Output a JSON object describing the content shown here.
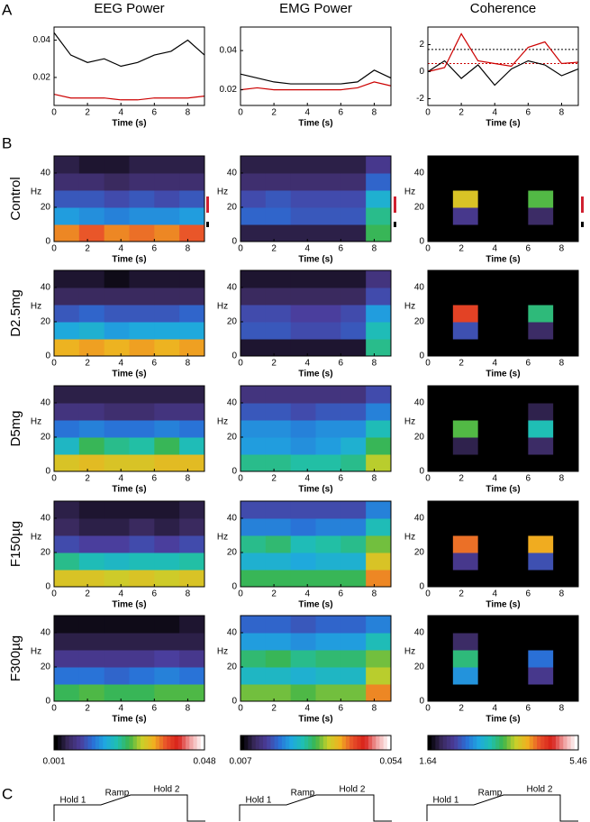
{
  "panel_labels": [
    "A",
    "B",
    "C"
  ],
  "colormap": [
    "#000000",
    "#3a2a5e",
    "#4b3c9a",
    "#2a6fd6",
    "#1fa7e0",
    "#1fc0b0",
    "#3cb54a",
    "#c8d02a",
    "#f0b020",
    "#e8502a",
    "#d8201a",
    "#f0a0a0",
    "#ffffff"
  ],
  "colorbars": [
    {
      "lim": [
        0.001,
        0.048
      ]
    },
    {
      "lim": [
        0.007,
        0.054
      ]
    },
    {
      "lim": [
        1.64,
        5.46
      ]
    }
  ],
  "protocol": {
    "labels": [
      "Hold 1",
      "Ramp",
      "Hold 2"
    ]
  },
  "chart_data": [
    {
      "type": "line",
      "title": "EEG Power",
      "xlabel": "Time (s)",
      "x": [
        0,
        1,
        2,
        3,
        4,
        5,
        6,
        7,
        8,
        9
      ],
      "xlim": [
        0,
        9
      ],
      "xticks": [
        0,
        2,
        4,
        6,
        8
      ],
      "ylim": [
        0.005,
        0.047
      ],
      "yticks": [
        0.02,
        0.04
      ],
      "series": [
        {
          "color": "#000000",
          "values": [
            0.044,
            0.032,
            0.028,
            0.03,
            0.026,
            0.028,
            0.032,
            0.034,
            0.04,
            0.032
          ]
        },
        {
          "color": "#cc0000",
          "values": [
            0.011,
            0.009,
            0.009,
            0.009,
            0.008,
            0.008,
            0.009,
            0.009,
            0.009,
            0.01
          ]
        }
      ]
    },
    {
      "type": "line",
      "title": "EMG Power",
      "xlabel": "Time (s)",
      "x": [
        0,
        1,
        2,
        3,
        4,
        5,
        6,
        7,
        8,
        9
      ],
      "xlim": [
        0,
        9
      ],
      "xticks": [
        0,
        2,
        4,
        6,
        8
      ],
      "ylim": [
        0.012,
        0.052
      ],
      "yticks": [
        0.02,
        0.04
      ],
      "series": [
        {
          "color": "#000000",
          "values": [
            0.028,
            0.026,
            0.024,
            0.023,
            0.023,
            0.023,
            0.023,
            0.024,
            0.03,
            0.026
          ]
        },
        {
          "color": "#cc0000",
          "values": [
            0.02,
            0.021,
            0.02,
            0.02,
            0.02,
            0.02,
            0.02,
            0.021,
            0.024,
            0.022
          ]
        }
      ]
    },
    {
      "type": "line",
      "title": "Coherence",
      "xlabel": "Time (s)",
      "x": [
        0,
        1,
        2,
        3,
        4,
        5,
        6,
        7,
        8,
        9
      ],
      "xlim": [
        0,
        9
      ],
      "xticks": [
        0,
        2,
        4,
        6,
        8
      ],
      "ylim": [
        -2.5,
        3.3
      ],
      "yticks": [
        -2,
        0,
        2
      ],
      "reference_lines": [
        {
          "value": 1.64,
          "color": "#000000"
        },
        {
          "value": 0.6,
          "color": "#cc0000"
        }
      ],
      "series": [
        {
          "color": "#000000",
          "values": [
            0,
            0.8,
            -0.5,
            0.5,
            -1,
            0.2,
            0.8,
            0.5,
            -0.3,
            0.2
          ]
        },
        {
          "color": "#cc0000",
          "values": [
            0,
            0.3,
            2.8,
            0.8,
            0.6,
            0.4,
            1.8,
            2.2,
            0.6,
            0.7
          ]
        }
      ]
    },
    {
      "type": "heatmap",
      "row_label": "Control",
      "ylabel": "Hz",
      "xlabel": "Time (s)",
      "xlim": [
        0,
        9
      ],
      "ylim": [
        0,
        50
      ],
      "xticks": [
        0,
        2,
        4,
        6,
        8
      ],
      "yticks": [
        0,
        20,
        40
      ],
      "z": [
        [
          0.034,
          0.036,
          0.034,
          0.035,
          0.034,
          0.036
        ],
        [
          0.016,
          0.015,
          0.014,
          0.015,
          0.015,
          0.016
        ],
        [
          0.011,
          0.011,
          0.01,
          0.011,
          0.01,
          0.011
        ],
        [
          0.006,
          0.006,
          0.005,
          0.006,
          0.006,
          0.006
        ],
        [
          0.004,
          0.003,
          0.003,
          0.004,
          0.004,
          0.004
        ]
      ]
    },
    {
      "type": "heatmap",
      "ylabel": "Hz",
      "xlabel": "Time (s)",
      "xlim": [
        0,
        9
      ],
      "ylim": [
        0,
        50
      ],
      "xticks": [
        0,
        2,
        4,
        6,
        8
      ],
      "yticks": [
        0,
        20,
        40
      ],
      "z": [
        [
          0.01,
          0.01,
          0.01,
          0.01,
          0.01,
          0.03
        ],
        [
          0.018,
          0.018,
          0.017,
          0.017,
          0.017,
          0.028
        ],
        [
          0.016,
          0.017,
          0.016,
          0.016,
          0.016,
          0.024
        ],
        [
          0.012,
          0.012,
          0.012,
          0.012,
          0.012,
          0.018
        ],
        [
          0.01,
          0.01,
          0.01,
          0.01,
          0.01,
          0.014
        ]
      ]
    },
    {
      "type": "heatmap",
      "ylabel": "Hz",
      "xlabel": "Time (s)",
      "xlim": [
        0,
        9
      ],
      "ylim": [
        0,
        50
      ],
      "xticks": [
        0,
        2,
        4,
        6,
        8
      ],
      "yticks": [
        0,
        20,
        40
      ],
      "z": [
        [
          1.64,
          1.64,
          1.64,
          1.64,
          1.64,
          1.64
        ],
        [
          1.64,
          2.2,
          1.64,
          1.64,
          2.0,
          1.64
        ],
        [
          1.64,
          4.0,
          1.64,
          1.64,
          3.6,
          1.64
        ],
        [
          1.64,
          1.64,
          1.64,
          1.64,
          1.64,
          1.64
        ],
        [
          1.64,
          1.64,
          1.64,
          1.64,
          1.64,
          1.64
        ]
      ]
    },
    {
      "type": "heatmap",
      "row_label": "D2.5mg",
      "ylabel": "Hz",
      "xlabel": "Time (s)",
      "xlim": [
        0,
        9
      ],
      "ylim": [
        0,
        50
      ],
      "xticks": [
        0,
        2,
        4,
        6,
        8
      ],
      "yticks": [
        0,
        20,
        40
      ],
      "z": [
        [
          0.032,
          0.033,
          0.032,
          0.033,
          0.032,
          0.033
        ],
        [
          0.017,
          0.018,
          0.016,
          0.017,
          0.017,
          0.017
        ],
        [
          0.011,
          0.012,
          0.011,
          0.011,
          0.011,
          0.012
        ],
        [
          0.005,
          0.005,
          0.005,
          0.005,
          0.005,
          0.005
        ],
        [
          0.003,
          0.003,
          0.002,
          0.003,
          0.003,
          0.003
        ]
      ]
    },
    {
      "type": "heatmap",
      "ylabel": "Hz",
      "xlabel": "Time (s)",
      "xlim": [
        0,
        9
      ],
      "ylim": [
        0,
        50
      ],
      "xticks": [
        0,
        2,
        4,
        6,
        8
      ],
      "yticks": [
        0,
        20,
        40
      ],
      "z": [
        [
          0.009,
          0.009,
          0.009,
          0.009,
          0.009,
          0.028
        ],
        [
          0.017,
          0.017,
          0.016,
          0.016,
          0.017,
          0.026
        ],
        [
          0.016,
          0.016,
          0.015,
          0.015,
          0.016,
          0.022
        ],
        [
          0.011,
          0.011,
          0.011,
          0.011,
          0.011,
          0.016
        ],
        [
          0.009,
          0.009,
          0.009,
          0.009,
          0.009,
          0.013
        ]
      ]
    },
    {
      "type": "heatmap",
      "ylabel": "Hz",
      "xlabel": "Time (s)",
      "xlim": [
        0,
        9
      ],
      "ylim": [
        0,
        50
      ],
      "xticks": [
        0,
        2,
        4,
        6,
        8
      ],
      "yticks": [
        0,
        20,
        40
      ],
      "z": [
        [
          1.64,
          1.64,
          1.64,
          1.64,
          1.64,
          1.64
        ],
        [
          1.64,
          2.4,
          1.64,
          1.64,
          2.0,
          1.64
        ],
        [
          1.64,
          4.6,
          1.64,
          1.64,
          3.4,
          1.64
        ],
        [
          1.64,
          1.64,
          1.64,
          1.64,
          1.64,
          1.64
        ],
        [
          1.64,
          1.64,
          1.64,
          1.64,
          1.64,
          1.64
        ]
      ]
    },
    {
      "type": "heatmap",
      "row_label": "D5mg",
      "ylabel": "Hz",
      "xlabel": "Time (s)",
      "xlim": [
        0,
        9
      ],
      "ylim": [
        0,
        50
      ],
      "xticks": [
        0,
        2,
        4,
        6,
        8
      ],
      "yticks": [
        0,
        20,
        40
      ],
      "z": [
        [
          0.03,
          0.031,
          0.03,
          0.03,
          0.031,
          0.031
        ],
        [
          0.019,
          0.024,
          0.022,
          0.021,
          0.024,
          0.02
        ],
        [
          0.013,
          0.014,
          0.013,
          0.013,
          0.014,
          0.013
        ],
        [
          0.007,
          0.007,
          0.006,
          0.006,
          0.007,
          0.007
        ],
        [
          0.004,
          0.004,
          0.004,
          0.004,
          0.004,
          0.004
        ]
      ]
    },
    {
      "type": "heatmap",
      "ylabel": "Hz",
      "xlabel": "Time (s)",
      "xlim": [
        0,
        9
      ],
      "ylim": [
        0,
        50
      ],
      "xticks": [
        0,
        2,
        4,
        6,
        8
      ],
      "yticks": [
        0,
        20,
        40
      ],
      "z": [
        [
          0.028,
          0.028,
          0.027,
          0.027,
          0.028,
          0.034
        ],
        [
          0.022,
          0.022,
          0.021,
          0.022,
          0.024,
          0.03
        ],
        [
          0.021,
          0.021,
          0.02,
          0.021,
          0.021,
          0.026
        ],
        [
          0.017,
          0.017,
          0.016,
          0.017,
          0.017,
          0.02
        ],
        [
          0.013,
          0.013,
          0.013,
          0.013,
          0.013,
          0.016
        ]
      ]
    },
    {
      "type": "heatmap",
      "ylabel": "Hz",
      "xlabel": "Time (s)",
      "xlim": [
        0,
        9
      ],
      "ylim": [
        0,
        50
      ],
      "xticks": [
        0,
        2,
        4,
        6,
        8
      ],
      "yticks": [
        0,
        20,
        40
      ],
      "z": [
        [
          1.64,
          1.64,
          1.64,
          1.64,
          1.64,
          1.64
        ],
        [
          1.64,
          1.9,
          1.64,
          1.64,
          2.0,
          1.64
        ],
        [
          1.64,
          3.6,
          1.64,
          1.64,
          3.2,
          1.64
        ],
        [
          1.64,
          1.64,
          1.64,
          1.64,
          1.9,
          1.64
        ],
        [
          1.64,
          1.64,
          1.64,
          1.64,
          1.64,
          1.64
        ]
      ]
    },
    {
      "type": "heatmap",
      "row_label": "F150µg",
      "ylabel": "Hz",
      "xlabel": "Time (s)",
      "xlim": [
        0,
        9
      ],
      "ylim": [
        0,
        50
      ],
      "xticks": [
        0,
        2,
        4,
        6,
        8
      ],
      "yticks": [
        0,
        20,
        40
      ],
      "z": [
        [
          0.03,
          0.03,
          0.029,
          0.03,
          0.029,
          0.03
        ],
        [
          0.022,
          0.02,
          0.019,
          0.02,
          0.02,
          0.021
        ],
        [
          0.01,
          0.009,
          0.009,
          0.01,
          0.009,
          0.01
        ],
        [
          0.005,
          0.004,
          0.004,
          0.005,
          0.004,
          0.005
        ],
        [
          0.004,
          0.003,
          0.003,
          0.003,
          0.003,
          0.004
        ]
      ]
    },
    {
      "type": "heatmap",
      "ylabel": "Hz",
      "xlabel": "Time (s)",
      "xlim": [
        0,
        9
      ],
      "ylim": [
        0,
        50
      ],
      "xticks": [
        0,
        2,
        4,
        6,
        8
      ],
      "yticks": [
        0,
        20,
        40
      ],
      "z": [
        [
          0.03,
          0.03,
          0.03,
          0.03,
          0.03,
          0.04
        ],
        [
          0.024,
          0.024,
          0.023,
          0.024,
          0.024,
          0.036
        ],
        [
          0.028,
          0.029,
          0.026,
          0.027,
          0.028,
          0.032
        ],
        [
          0.02,
          0.02,
          0.019,
          0.02,
          0.02,
          0.026
        ],
        [
          0.016,
          0.016,
          0.016,
          0.016,
          0.016,
          0.02
        ]
      ]
    },
    {
      "type": "heatmap",
      "ylabel": "Hz",
      "xlabel": "Time (s)",
      "xlim": [
        0,
        9
      ],
      "ylim": [
        0,
        50
      ],
      "xticks": [
        0,
        2,
        4,
        6,
        8
      ],
      "yticks": [
        0,
        20,
        40
      ],
      "z": [
        [
          1.64,
          1.64,
          1.64,
          1.64,
          1.64,
          1.64
        ],
        [
          1.64,
          2.2,
          1.64,
          1.64,
          2.4,
          1.64
        ],
        [
          1.64,
          4.4,
          1.64,
          1.64,
          4.2,
          1.64
        ],
        [
          1.64,
          1.64,
          1.64,
          1.64,
          1.64,
          1.64
        ],
        [
          1.64,
          1.64,
          1.64,
          1.64,
          1.64,
          1.64
        ]
      ]
    },
    {
      "type": "heatmap",
      "row_label": "F300µg",
      "ylabel": "Hz",
      "xlabel": "Time (s)",
      "xlim": [
        0,
        9
      ],
      "ylim": [
        0,
        50
      ],
      "xticks": [
        0,
        2,
        4,
        6,
        8
      ],
      "yticks": [
        0,
        20,
        40
      ],
      "z": [
        [
          0.024,
          0.025,
          0.024,
          0.024,
          0.025,
          0.025
        ],
        [
          0.013,
          0.013,
          0.012,
          0.013,
          0.014,
          0.013
        ],
        [
          0.008,
          0.008,
          0.008,
          0.008,
          0.009,
          0.008
        ],
        [
          0.004,
          0.004,
          0.004,
          0.004,
          0.004,
          0.004
        ],
        [
          0.002,
          0.002,
          0.002,
          0.002,
          0.002,
          0.003
        ]
      ]
    },
    {
      "type": "heatmap",
      "ylabel": "Hz",
      "xlabel": "Time (s)",
      "xlim": [
        0,
        9
      ],
      "ylim": [
        0,
        50
      ],
      "xticks": [
        0,
        2,
        4,
        6,
        8
      ],
      "yticks": [
        0,
        20,
        40
      ],
      "z": [
        [
          0.032,
          0.032,
          0.031,
          0.032,
          0.032,
          0.04
        ],
        [
          0.025,
          0.025,
          0.024,
          0.025,
          0.025,
          0.034
        ],
        [
          0.029,
          0.03,
          0.028,
          0.029,
          0.029,
          0.032
        ],
        [
          0.022,
          0.022,
          0.021,
          0.022,
          0.022,
          0.026
        ],
        [
          0.018,
          0.018,
          0.017,
          0.018,
          0.018,
          0.02
        ]
      ]
    },
    {
      "type": "heatmap",
      "ylabel": "Hz",
      "xlabel": "Time (s)",
      "xlim": [
        0,
        9
      ],
      "ylim": [
        0,
        50
      ],
      "xticks": [
        0,
        2,
        4,
        6,
        8
      ],
      "yticks": [
        0,
        20,
        40
      ],
      "z": [
        [
          1.64,
          1.64,
          1.64,
          1.64,
          1.64,
          1.64
        ],
        [
          1.64,
          2.8,
          1.64,
          1.64,
          2.2,
          1.64
        ],
        [
          1.64,
          3.4,
          1.64,
          1.64,
          2.6,
          1.64
        ],
        [
          1.64,
          2.0,
          1.64,
          1.64,
          1.64,
          1.64
        ],
        [
          1.64,
          1.64,
          1.64,
          1.64,
          1.64,
          1.64
        ]
      ]
    }
  ]
}
